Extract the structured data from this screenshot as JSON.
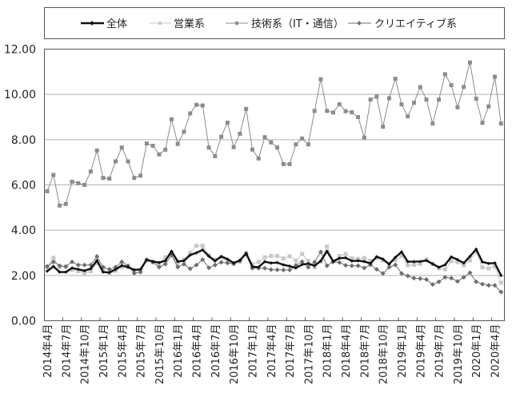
{
  "chart_data": {
    "type": "line",
    "title": "",
    "xlabel": "",
    "ylabel": "",
    "ylim": [
      0,
      12
    ],
    "yticks": [
      "0.00",
      "2.00",
      "4.00",
      "6.00",
      "8.00",
      "10.00",
      "12.00"
    ],
    "grid": true,
    "legend_position": "top",
    "x_tick_labels": [
      "2014年4月",
      "2014年7月",
      "2014年10月",
      "2015年1月",
      "2015年4月",
      "2015年7月",
      "2015年10月",
      "2016年1月",
      "2016年4月",
      "2016年7月",
      "2016年10月",
      "2017年1月",
      "2017年4月",
      "2017年7月",
      "2017年10月",
      "2018年1月",
      "2018年4月",
      "2018年7月",
      "2018年10月",
      "2019年1月",
      "2019年4月",
      "2019年7月",
      "2019年10月",
      "2020年1月",
      "2020年4月"
    ],
    "x_start": "2014年4月",
    "x_end": "2020年5月",
    "n_points": 74,
    "series": [
      {
        "name": "全体",
        "color": "#111111",
        "marker": "diamond",
        "line_width": 2.4,
        "values": [
          2.19,
          2.4,
          2.15,
          2.15,
          2.33,
          2.27,
          2.21,
          2.3,
          2.66,
          2.15,
          2.13,
          2.27,
          2.44,
          2.37,
          2.25,
          2.27,
          2.69,
          2.62,
          2.57,
          2.65,
          3.07,
          2.62,
          2.65,
          2.9,
          3.0,
          3.13,
          2.85,
          2.64,
          2.84,
          2.72,
          2.55,
          2.67,
          2.98,
          2.39,
          2.37,
          2.61,
          2.55,
          2.57,
          2.47,
          2.41,
          2.33,
          2.48,
          2.52,
          2.43,
          2.64,
          3.07,
          2.62,
          2.76,
          2.78,
          2.64,
          2.65,
          2.62,
          2.53,
          2.83,
          2.72,
          2.5,
          2.8,
          3.04,
          2.61,
          2.61,
          2.62,
          2.66,
          2.51,
          2.36,
          2.47,
          2.82,
          2.7,
          2.55,
          2.84,
          3.16,
          2.6,
          2.53,
          2.55,
          2.0
        ]
      },
      {
        "name": "営業系",
        "color": "#c8c8c8",
        "marker": "square",
        "line_width": 1,
        "values": [
          2.37,
          2.78,
          2.37,
          2.37,
          2.25,
          2.19,
          2.1,
          2.19,
          2.54,
          2.25,
          2.07,
          2.21,
          2.37,
          2.37,
          2.19,
          2.22,
          2.66,
          2.6,
          2.48,
          2.8,
          2.95,
          2.5,
          2.7,
          3.0,
          3.31,
          3.31,
          2.9,
          2.7,
          2.8,
          2.6,
          2.55,
          2.6,
          3.0,
          2.5,
          2.6,
          2.8,
          2.86,
          2.86,
          2.75,
          2.85,
          2.66,
          2.95,
          2.64,
          2.36,
          2.61,
          3.28,
          2.64,
          2.86,
          2.95,
          2.76,
          2.73,
          2.77,
          2.65,
          2.77,
          2.66,
          2.51,
          2.68,
          2.86,
          2.45,
          2.47,
          2.51,
          2.71,
          2.51,
          2.31,
          2.27,
          2.63,
          2.59,
          2.45,
          2.66,
          3.04,
          2.36,
          2.31,
          2.39,
          1.68
        ]
      },
      {
        "name": "技術系（IT・通信）",
        "color": "#8c8c8c",
        "marker": "square",
        "line_width": 1,
        "values": [
          5.72,
          6.44,
          5.09,
          5.16,
          6.14,
          6.08,
          6.0,
          6.59,
          7.52,
          6.31,
          6.28,
          7.04,
          7.65,
          7.04,
          6.31,
          6.41,
          7.83,
          7.73,
          7.35,
          7.56,
          8.9,
          7.81,
          8.35,
          9.16,
          9.54,
          9.51,
          7.65,
          7.27,
          8.13,
          8.75,
          7.67,
          8.26,
          9.36,
          7.56,
          7.17,
          8.11,
          7.88,
          7.65,
          6.92,
          6.92,
          7.79,
          8.05,
          7.79,
          9.27,
          10.67,
          9.27,
          9.2,
          9.56,
          9.26,
          9.21,
          9.0,
          8.09,
          9.77,
          9.9,
          8.57,
          9.83,
          10.69,
          9.56,
          9.03,
          9.63,
          10.32,
          9.77,
          8.71,
          9.77,
          10.89,
          10.41,
          9.43,
          10.33,
          11.41,
          9.81,
          8.74,
          9.47,
          10.78,
          8.71
        ]
      },
      {
        "name": "クリエイティブ系",
        "color": "#6e6e6e",
        "marker": "diamond",
        "line_width": 1,
        "values": [
          2.4,
          2.6,
          2.43,
          2.4,
          2.6,
          2.46,
          2.46,
          2.46,
          2.84,
          2.37,
          2.27,
          2.37,
          2.6,
          2.43,
          2.1,
          2.15,
          2.7,
          2.58,
          2.37,
          2.5,
          2.9,
          2.37,
          2.5,
          2.3,
          2.46,
          2.7,
          2.34,
          2.46,
          2.58,
          2.55,
          2.51,
          2.65,
          2.93,
          2.32,
          2.32,
          2.32,
          2.26,
          2.25,
          2.24,
          2.24,
          2.45,
          2.61,
          2.36,
          2.59,
          3.04,
          2.43,
          2.6,
          2.57,
          2.45,
          2.43,
          2.43,
          2.33,
          2.47,
          2.27,
          2.09,
          2.36,
          2.47,
          2.09,
          1.98,
          1.88,
          1.86,
          1.82,
          1.6,
          1.72,
          1.92,
          1.88,
          1.74,
          1.92,
          2.12,
          1.72,
          1.62,
          1.56,
          1.56,
          1.27
        ]
      }
    ]
  },
  "legend": {
    "items": [
      {
        "label": "全体"
      },
      {
        "label": "営業系"
      },
      {
        "label": "技術系（IT・通信）"
      },
      {
        "label": "クリエイティブ系"
      }
    ]
  }
}
